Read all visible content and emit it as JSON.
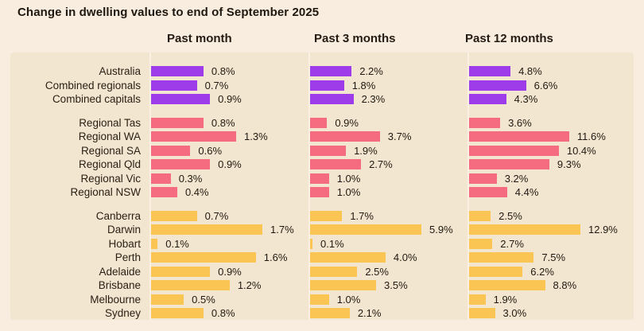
{
  "title": "Change in dwelling values to end of September 2025",
  "colors": {
    "purple": "#9d3ce8",
    "pink": "#f56b80",
    "yellow": "#fac552",
    "page_bg": "#f8edde",
    "panel_bg": "#f3e6d0",
    "axis_line": "#faf1e2",
    "text": "#211911"
  },
  "chart_data": {
    "type": "bar",
    "title": "Change in dwelling values to end of September 2025",
    "orientation": "horizontal",
    "unit": "%",
    "legend": "none",
    "grid": "off",
    "columns": [
      "Past month",
      "Past 3 months",
      "Past 12 months"
    ],
    "column_max": [
      1.7,
      5.9,
      12.9
    ],
    "groups": [
      {
        "name": "national",
        "color_key": "purple",
        "rows": [
          {
            "label": "Australia",
            "values": [
              0.8,
              2.2,
              4.8
            ]
          },
          {
            "label": "Combined regionals",
            "values": [
              0.7,
              1.8,
              6.6
            ]
          },
          {
            "label": "Combined capitals",
            "values": [
              0.9,
              2.3,
              4.3
            ]
          }
        ]
      },
      {
        "name": "regional",
        "color_key": "pink",
        "rows": [
          {
            "label": "Regional Tas",
            "values": [
              0.8,
              0.9,
              3.6
            ]
          },
          {
            "label": "Regional WA",
            "values": [
              1.3,
              3.7,
              11.6
            ]
          },
          {
            "label": "Regional SA",
            "values": [
              0.6,
              1.9,
              10.4
            ]
          },
          {
            "label": "Regional Qld",
            "values": [
              0.9,
              2.7,
              9.3
            ]
          },
          {
            "label": "Regional Vic",
            "values": [
              0.3,
              1.0,
              3.2
            ]
          },
          {
            "label": "Regional NSW",
            "values": [
              0.4,
              1.0,
              4.4
            ]
          }
        ]
      },
      {
        "name": "capitals",
        "color_key": "yellow",
        "rows": [
          {
            "label": "Canberra",
            "values": [
              0.7,
              1.7,
              2.5
            ]
          },
          {
            "label": "Darwin",
            "values": [
              1.7,
              5.9,
              12.9
            ]
          },
          {
            "label": "Hobart",
            "values": [
              0.1,
              0.1,
              2.7
            ]
          },
          {
            "label": "Perth",
            "values": [
              1.6,
              4.0,
              7.5
            ]
          },
          {
            "label": "Adelaide",
            "values": [
              0.9,
              2.5,
              6.2
            ]
          },
          {
            "label": "Brisbane",
            "values": [
              1.2,
              3.5,
              8.8
            ]
          },
          {
            "label": "Melbourne",
            "values": [
              0.5,
              1.0,
              1.9
            ]
          },
          {
            "label": "Sydney",
            "values": [
              0.8,
              2.1,
              3.0
            ]
          }
        ]
      }
    ]
  }
}
